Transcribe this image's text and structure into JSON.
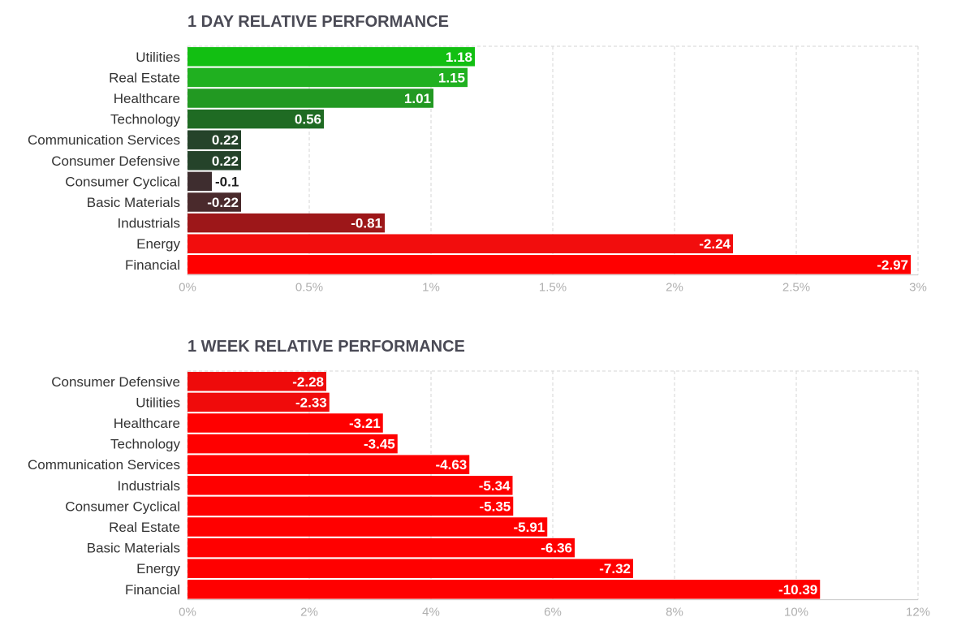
{
  "chart_data": [
    {
      "type": "bar",
      "orientation": "horizontal",
      "title": "1 DAY RELATIVE PERFORMANCE",
      "categories": [
        "Utilities",
        "Real Estate",
        "Healthcare",
        "Technology",
        "Communication Services",
        "Consumer Defensive",
        "Consumer Cyclical",
        "Basic Materials",
        "Industrials",
        "Energy",
        "Financial"
      ],
      "values": [
        1.18,
        1.15,
        1.01,
        0.56,
        0.22,
        0.22,
        -0.1,
        -0.22,
        -0.81,
        -2.24,
        -2.97
      ],
      "value_labels": [
        "1.18",
        "1.15",
        "1.01",
        "0.56",
        "0.22",
        "0.22",
        "-0.1",
        "-0.22",
        "-0.81",
        "-2.24",
        "-2.97"
      ],
      "colors": [
        "#12bf12",
        "#20b020",
        "#229922",
        "#1f6b23",
        "#25432a",
        "#25432a",
        "#3e2d2f",
        "#4a2a2c",
        "#9d1719",
        "#f20d0d",
        "#ff0000"
      ],
      "xlim": [
        0,
        3
      ],
      "xticks": [
        "0%",
        "0.5%",
        "1%",
        "1.5%",
        "2%",
        "2.5%",
        "3%"
      ],
      "scale": "absolute value",
      "grid": true,
      "legend": "none"
    },
    {
      "type": "bar",
      "orientation": "horizontal",
      "title": "1 WEEK RELATIVE PERFORMANCE",
      "categories": [
        "Consumer Defensive",
        "Utilities",
        "Healthcare",
        "Technology",
        "Communication Services",
        "Industrials",
        "Consumer Cyclical",
        "Real Estate",
        "Basic Materials",
        "Energy",
        "Financial"
      ],
      "values": [
        -2.28,
        -2.33,
        -3.21,
        -3.45,
        -4.63,
        -5.34,
        -5.35,
        -5.91,
        -6.36,
        -7.32,
        -10.39
      ],
      "value_labels": [
        "-2.28",
        "-2.33",
        "-3.21",
        "-3.45",
        "-4.63",
        "-5.34",
        "-5.35",
        "-5.91",
        "-6.36",
        "-7.32",
        "-10.39"
      ],
      "colors": [
        "#ee0b0b",
        "#f00b0b",
        "#ff0000",
        "#ff0000",
        "#ff0000",
        "#ff0000",
        "#ff0000",
        "#ff0000",
        "#ff0000",
        "#ff0000",
        "#ff0000"
      ],
      "xlim": [
        0,
        12
      ],
      "xticks": [
        "0%",
        "2%",
        "4%",
        "6%",
        "8%",
        "10%",
        "12%"
      ],
      "scale": "absolute value",
      "grid": true,
      "legend": "none"
    }
  ]
}
